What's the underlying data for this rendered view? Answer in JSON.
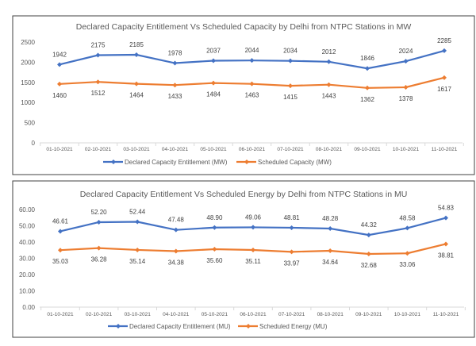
{
  "chart_data": [
    {
      "type": "line",
      "title": "Declared Capacity Entitlement Vs Scheduled Capacity by Delhi from NTPC Stations in MW",
      "categories": [
        "01-10-2021",
        "02-10-2021",
        "03-10-2021",
        "04-10-2021",
        "05-10-2021",
        "06-10-2021",
        "07-10-2021",
        "08-10-2021",
        "09-10-2021",
        "10-10-2021",
        "11-10-2021"
      ],
      "ylim": [
        0,
        2500
      ],
      "yticks": [
        "0",
        "500",
        "1000",
        "1500",
        "2000",
        "2500"
      ],
      "ytick_values": [
        0,
        500,
        1000,
        1500,
        2000,
        2500
      ],
      "grid": false,
      "legend": "bottom",
      "series": [
        {
          "name": "Declared Capacity Entitlement (MW)",
          "color": "#4472c4",
          "values": [
            1942,
            2175,
            2185,
            1978,
            2037,
            2044,
            2034,
            2012,
            1846,
            2024,
            2285
          ],
          "labels": [
            "1942",
            "2175",
            "2185",
            "1978",
            "2037",
            "2044",
            "2034",
            "2012",
            "1846",
            "2024",
            "2285"
          ]
        },
        {
          "name": "Scheduled Capacity (MW)",
          "color": "#ed7d31",
          "values": [
            1460,
            1512,
            1464,
            1433,
            1484,
            1463,
            1415,
            1443,
            1362,
            1378,
            1617
          ],
          "labels": [
            "1460",
            "1512",
            "1464",
            "1433",
            "1484",
            "1463",
            "1415",
            "1443",
            "1362",
            "1378",
            "1617"
          ]
        }
      ]
    },
    {
      "type": "line",
      "title": "Declared Capacity Entitlement Vs Scheduled Energy by Delhi from NTPC Stations in MU",
      "categories": [
        "01-10-2021",
        "02-10-2021",
        "03-10-2021",
        "04-10-2021",
        "05-10-2021",
        "06-10-2021",
        "07-10-2021",
        "08-10-2021",
        "09-10-2021",
        "10-10-2021",
        "11-10-2021"
      ],
      "ylim": [
        0,
        60
      ],
      "yticks": [
        "0.00",
        "10.00",
        "20.00",
        "30.00",
        "40.00",
        "50.00",
        "60.00"
      ],
      "ytick_values": [
        0,
        10,
        20,
        30,
        40,
        50,
        60
      ],
      "grid": false,
      "legend": "bottom",
      "series": [
        {
          "name": "Declared Capacity Entitlement (MU)",
          "color": "#4472c4",
          "values": [
            46.61,
            52.2,
            52.44,
            47.48,
            48.9,
            49.06,
            48.81,
            48.28,
            44.32,
            48.58,
            54.83
          ],
          "labels": [
            "46.61",
            "52.20",
            "52.44",
            "47.48",
            "48.90",
            "49.06",
            "48.81",
            "48.28",
            "44.32",
            "48.58",
            "54.83"
          ]
        },
        {
          "name": "Scheduled Energy (MU)",
          "color": "#ed7d31",
          "values": [
            35.03,
            36.28,
            35.14,
            34.38,
            35.6,
            35.11,
            33.97,
            34.64,
            32.68,
            33.06,
            38.81
          ],
          "labels": [
            "35.03",
            "36.28",
            "35.14",
            "34.38",
            "35.60",
            "35.11",
            "33.97",
            "34.64",
            "32.68",
            "33.06",
            "38.81"
          ]
        }
      ]
    }
  ]
}
